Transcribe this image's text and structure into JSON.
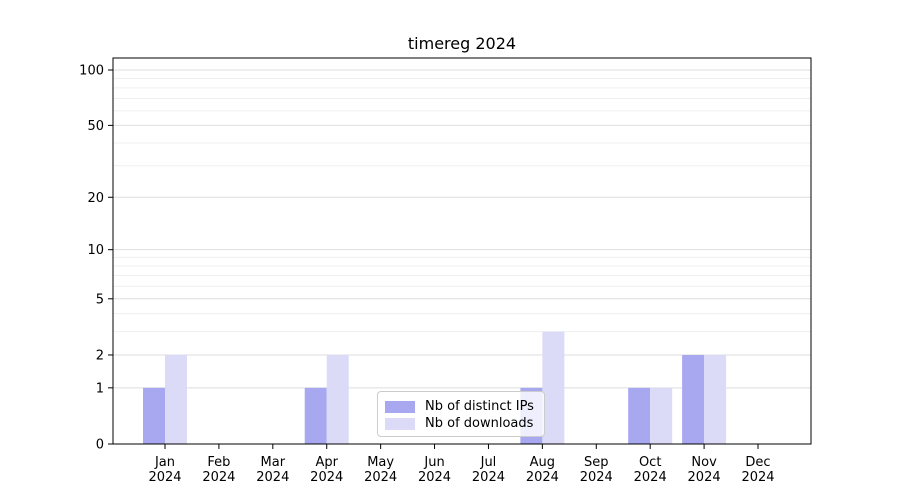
{
  "chart_data": {
    "type": "bar",
    "title": "timereg 2024",
    "categories": [
      "Jan",
      "Feb",
      "Mar",
      "Apr",
      "May",
      "Jun",
      "Jul",
      "Aug",
      "Sep",
      "Oct",
      "Nov",
      "Dec"
    ],
    "x_tick_year": "2024",
    "series": [
      {
        "name": "Nb of distinct IPs",
        "color": "#a8a8f1",
        "values": [
          1,
          0,
          0,
          1,
          0,
          0,
          0,
          1,
          0,
          1,
          2,
          0
        ]
      },
      {
        "name": "Nb of downloads",
        "color": "#dbdbf8",
        "values": [
          2,
          0,
          0,
          2,
          0,
          0,
          0,
          3,
          0,
          1,
          2,
          0
        ]
      }
    ],
    "y_scale": "log10(1+v)",
    "y_ticks": [
      0,
      1,
      2,
      5,
      10,
      20,
      50,
      100
    ],
    "y_tick_labels": [
      "0",
      "1",
      "2",
      "5",
      "10",
      "20",
      "50",
      "100"
    ],
    "y_minor_ticks": [
      3,
      4,
      6,
      7,
      8,
      9,
      30,
      40,
      60,
      70,
      80,
      90
    ],
    "ylim": [
      0,
      113
    ],
    "grid": "both",
    "legend_position": "lower center",
    "style": {
      "bar_dark": "#a8a8f1",
      "bar_light": "#dbdbf8",
      "grid_major": "#dedede",
      "grid_minor": "#efefef",
      "spine": "#000000",
      "legend_border": "#cccccc",
      "background": "#ffffff"
    }
  }
}
